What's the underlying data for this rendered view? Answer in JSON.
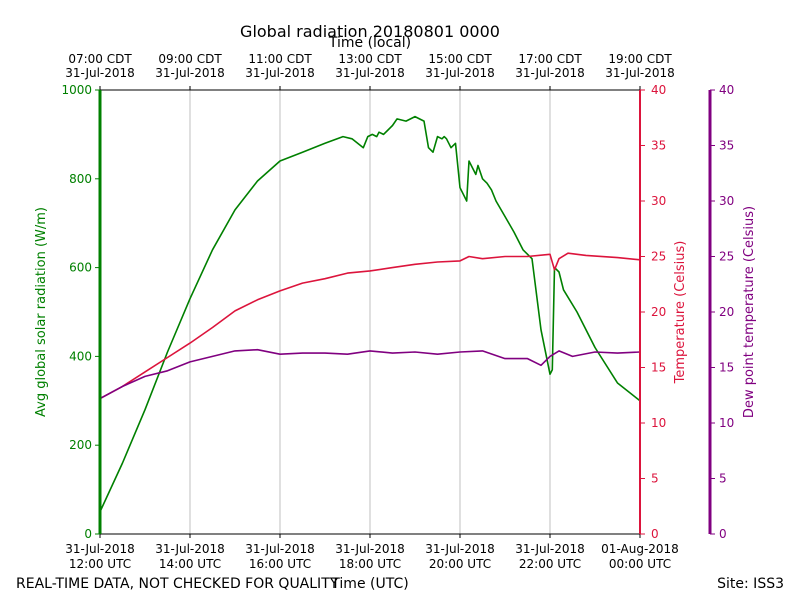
{
  "chart_data": {
    "type": "line",
    "title": "Global radiation 20180801 0000",
    "top_axis_label": "Time (local)",
    "bottom_axis_label": "Time (UTC)",
    "footer_left": "REAL-TIME DATA, NOT CHECKED FOR QUALITY",
    "footer_right": "Site: ISS3",
    "x_range_utc_hours": [
      12,
      24
    ],
    "top_ticks": [
      {
        "t": 12,
        "line1": "07:00 CDT",
        "line2": "31-Jul-2018"
      },
      {
        "t": 14,
        "line1": "09:00 CDT",
        "line2": "31-Jul-2018"
      },
      {
        "t": 16,
        "line1": "11:00 CDT",
        "line2": "31-Jul-2018"
      },
      {
        "t": 18,
        "line1": "13:00 CDT",
        "line2": "31-Jul-2018"
      },
      {
        "t": 20,
        "line1": "15:00 CDT",
        "line2": "31-Jul-2018"
      },
      {
        "t": 22,
        "line1": "17:00 CDT",
        "line2": "31-Jul-2018"
      },
      {
        "t": 24,
        "line1": "19:00 CDT",
        "line2": "31-Jul-2018"
      }
    ],
    "bottom_ticks": [
      {
        "t": 12,
        "line1": "31-Jul-2018",
        "line2": "12:00 UTC"
      },
      {
        "t": 14,
        "line1": "31-Jul-2018",
        "line2": "14:00 UTC"
      },
      {
        "t": 16,
        "line1": "31-Jul-2018",
        "line2": "16:00 UTC"
      },
      {
        "t": 18,
        "line1": "31-Jul-2018",
        "line2": "18:00 UTC"
      },
      {
        "t": 20,
        "line1": "31-Jul-2018",
        "line2": "20:00 UTC"
      },
      {
        "t": 22,
        "line1": "31-Jul-2018",
        "line2": "22:00 UTC"
      },
      {
        "t": 24,
        "line1": "01-Aug-2018",
        "line2": "00:00 UTC"
      }
    ],
    "axes": {
      "radiation": {
        "label": "Avg global solar radiation (W/m)",
        "ylim": [
          0,
          1000
        ],
        "ticks": [
          0,
          200,
          400,
          600,
          800,
          1000
        ],
        "color": "#008000"
      },
      "temperature": {
        "label": "Temperature (Celsius)",
        "ylim": [
          0,
          40
        ],
        "ticks": [
          0,
          5,
          10,
          15,
          20,
          25,
          30,
          35,
          40
        ],
        "color": "#dc143c"
      },
      "dewpoint": {
        "label": "Dew point temperature (Celsius)",
        "ylim": [
          0,
          40
        ],
        "ticks": [
          0,
          5,
          10,
          15,
          20,
          25,
          30,
          35,
          40
        ],
        "color": "#800080"
      }
    },
    "series": [
      {
        "name": "radiation",
        "axis": "radiation",
        "color": "#008000",
        "x": [
          12.0,
          12.5,
          13.0,
          13.5,
          14.0,
          14.5,
          15.0,
          15.5,
          16.0,
          16.5,
          17.0,
          17.4,
          17.6,
          17.85,
          17.95,
          18.05,
          18.15,
          18.2,
          18.3,
          18.4,
          18.5,
          18.6,
          18.8,
          19.0,
          19.2,
          19.3,
          19.4,
          19.5,
          19.6,
          19.65,
          19.7,
          19.8,
          19.9,
          20.0,
          20.15,
          20.2,
          20.3,
          20.35,
          20.4,
          20.5,
          20.6,
          20.7,
          20.8,
          21.0,
          21.2,
          21.4,
          21.6,
          21.8,
          22.0,
          22.05,
          22.1,
          22.2,
          22.3,
          22.6,
          23.0,
          23.5,
          24.0
        ],
        "values": [
          50,
          160,
          280,
          410,
          530,
          640,
          730,
          795,
          840,
          860,
          880,
          895,
          890,
          870,
          895,
          900,
          895,
          905,
          900,
          910,
          920,
          935,
          930,
          940,
          930,
          870,
          860,
          895,
          890,
          895,
          890,
          870,
          880,
          780,
          750,
          840,
          820,
          810,
          830,
          800,
          790,
          775,
          750,
          715,
          680,
          640,
          620,
          460,
          360,
          370,
          600,
          590,
          550,
          500,
          420,
          340,
          300
        ]
      },
      {
        "name": "temperature",
        "axis": "temperature",
        "color": "#dc143c",
        "x": [
          12.0,
          12.5,
          13.0,
          13.5,
          14.0,
          14.5,
          15.0,
          15.5,
          16.0,
          16.5,
          17.0,
          17.5,
          18.0,
          18.5,
          19.0,
          19.5,
          20.0,
          20.2,
          20.5,
          21.0,
          21.5,
          22.0,
          22.1,
          22.2,
          22.4,
          22.8,
          23.5,
          24.0
        ],
        "values": [
          12.2,
          13.3,
          14.6,
          15.9,
          17.2,
          18.6,
          20.1,
          21.1,
          21.9,
          22.6,
          23.0,
          23.5,
          23.7,
          24.0,
          24.3,
          24.5,
          24.6,
          25.0,
          24.8,
          25.0,
          25.0,
          25.2,
          23.8,
          24.8,
          25.3,
          25.1,
          24.9,
          24.7
        ]
      },
      {
        "name": "dewpoint",
        "axis": "dewpoint",
        "color": "#800080",
        "x": [
          12.0,
          12.5,
          13.0,
          13.5,
          14.0,
          14.5,
          15.0,
          15.5,
          16.0,
          16.5,
          17.0,
          17.5,
          18.0,
          18.5,
          19.0,
          19.5,
          20.0,
          20.5,
          21.0,
          21.5,
          21.8,
          22.0,
          22.2,
          22.5,
          23.0,
          23.5,
          24.0
        ],
        "values": [
          12.2,
          13.3,
          14.2,
          14.7,
          15.5,
          16.0,
          16.5,
          16.6,
          16.2,
          16.3,
          16.3,
          16.2,
          16.5,
          16.3,
          16.4,
          16.2,
          16.4,
          16.5,
          15.8,
          15.8,
          15.2,
          16.0,
          16.5,
          16.0,
          16.4,
          16.3,
          16.4
        ]
      }
    ]
  }
}
